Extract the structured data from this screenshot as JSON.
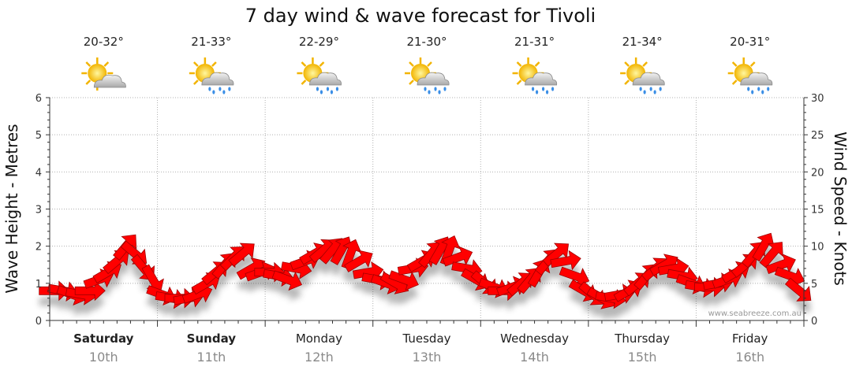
{
  "title": "7 day wind & wave forecast for Tivoli",
  "watermark": "www.seabreeze.com.au",
  "days": [
    {
      "name": "Saturday",
      "date": "10th",
      "temp": "20-32°",
      "icon": "sun-cloud-icon",
      "bold": true
    },
    {
      "name": "Sunday",
      "date": "11th",
      "temp": "21-33°",
      "icon": "sun-cloud-rain-icon",
      "bold": true
    },
    {
      "name": "Monday",
      "date": "12th",
      "temp": "22-29°",
      "icon": "sun-cloud-rain-icon",
      "bold": false
    },
    {
      "name": "Tuesday",
      "date": "13th",
      "temp": "21-30°",
      "icon": "sun-cloud-rain-icon",
      "bold": false
    },
    {
      "name": "Wednesday",
      "date": "14th",
      "temp": "21-31°",
      "icon": "sun-cloud-rain-icon",
      "bold": false
    },
    {
      "name": "Thursday",
      "date": "15th",
      "temp": "21-34°",
      "icon": "sun-cloud-rain-icon",
      "bold": false
    },
    {
      "name": "Friday",
      "date": "16th",
      "temp": "20-31°",
      "icon": "sun-cloud-rain-icon",
      "bold": false
    }
  ],
  "colors": {
    "arrow": "#ff0000",
    "arrow_stroke": "#a00000",
    "grid": "#b0b0b0",
    "axis": "#333333"
  },
  "chart_data": {
    "type": "line",
    "left_axis": {
      "label": "Wave Height - Metres",
      "range": [
        0,
        6
      ],
      "ticks": [
        "0",
        "1",
        "2",
        "3",
        "4",
        "5",
        "6"
      ]
    },
    "right_axis": {
      "label": "Wind Speed - Knots",
      "range": [
        0,
        30
      ],
      "ticks": [
        "0",
        "5",
        "10",
        "15",
        "20",
        "25",
        "30"
      ]
    },
    "grid": true,
    "series": [
      {
        "x_unit": "hours from start of Saturday",
        "wind_knots": [
          4,
          4,
          3.5,
          3.5,
          4,
          5.5,
          6.5,
          8,
          10,
          9,
          7,
          5.5,
          3.5,
          3,
          3,
          3,
          3.5,
          5,
          6.5,
          7.5,
          8.5,
          9,
          7,
          6.5,
          6.5,
          6,
          5.5,
          7,
          8,
          9,
          9.5,
          9.5,
          9.5,
          9,
          8,
          6.5,
          5.5,
          5,
          5,
          5.5,
          7,
          8,
          9,
          9.5,
          9.5,
          8.5,
          7,
          5.5,
          5,
          4.5,
          4,
          4.5,
          5,
          5.5,
          6.5,
          8,
          9,
          8,
          6,
          4,
          3.5,
          3,
          3,
          3.5,
          4,
          5,
          6,
          7,
          7.5,
          7,
          6,
          5,
          4.5,
          4.5,
          5,
          5.5,
          6.5,
          7.5,
          9,
          10,
          9,
          7.5,
          6,
          4
        ],
        "direction_deg": [
          90,
          100,
          110,
          100,
          90,
          70,
          60,
          50,
          40,
          130,
          140,
          150,
          110,
          100,
          90,
          80,
          70,
          60,
          50,
          40,
          45,
          50,
          60,
          70,
          90,
          100,
          110,
          100,
          70,
          60,
          50,
          40,
          30,
          20,
          60,
          80,
          100,
          110,
          120,
          110,
          80,
          60,
          40,
          30,
          20,
          70,
          100,
          120,
          130,
          110,
          90,
          70,
          50,
          40,
          30,
          40,
          50,
          80,
          110,
          120,
          130,
          120,
          100,
          80,
          60,
          50,
          40,
          50,
          60,
          80,
          100,
          110,
          100,
          90,
          80,
          70,
          60,
          50,
          40,
          30,
          40,
          70,
          110,
          130
        ]
      }
    ]
  }
}
